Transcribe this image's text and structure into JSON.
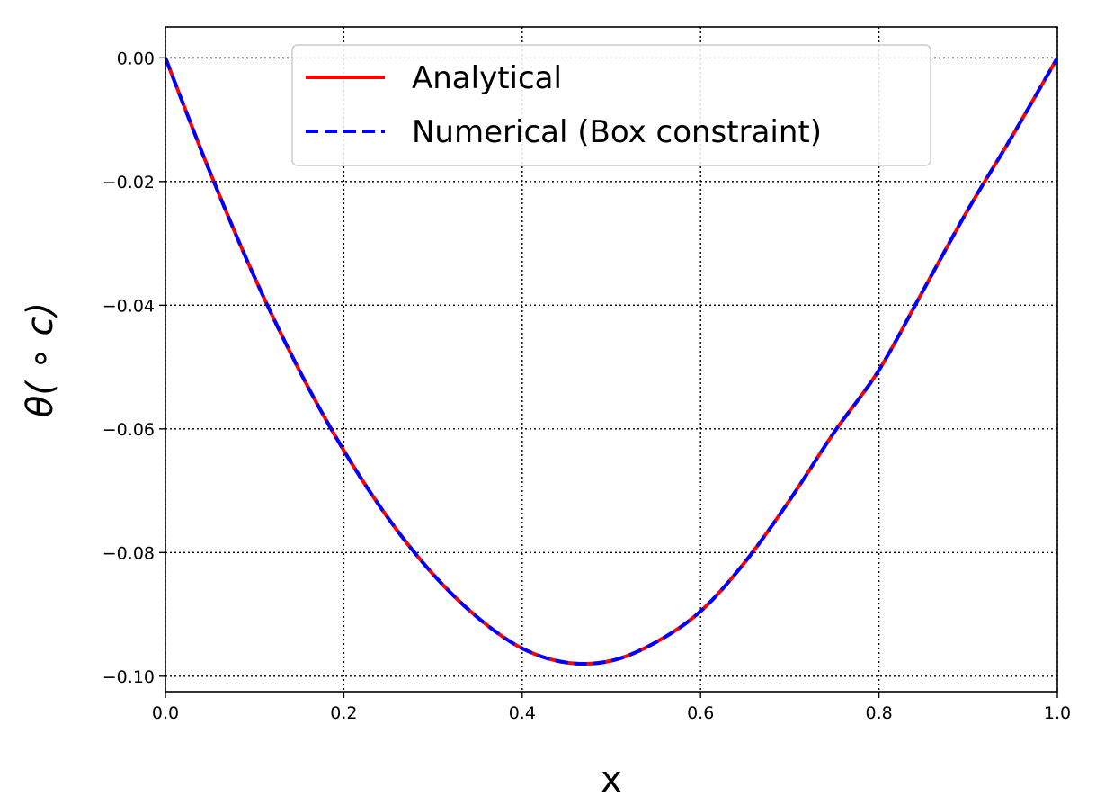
{
  "chart_data": {
    "type": "line",
    "title": "",
    "xlabel": "x",
    "ylabel": "θ( ∘ c)",
    "xlim": [
      0.0,
      1.0
    ],
    "ylim": [
      -0.1025,
      0.005
    ],
    "xticks": [
      0.0,
      0.2,
      0.4,
      0.6,
      0.8,
      1.0
    ],
    "xtick_labels": [
      "0.0",
      "0.2",
      "0.4",
      "0.6",
      "0.8",
      "1.0"
    ],
    "yticks": [
      0.0,
      -0.02,
      -0.04,
      -0.06,
      -0.08,
      -0.1
    ],
    "ytick_labels": [
      "0.00",
      "−0.02",
      "−0.04",
      "−0.06",
      "−0.08",
      "−0.10"
    ],
    "grid": true,
    "grid_style": "dotted",
    "legend_position": "top-center",
    "series": [
      {
        "name": "Analytical",
        "color": "#ff0000",
        "style": "solid",
        "x": [
          0.0,
          0.05,
          0.1,
          0.15,
          0.2,
          0.25,
          0.3,
          0.35,
          0.4,
          0.45,
          0.5,
          0.55,
          0.6,
          0.65,
          0.7,
          0.75,
          0.8,
          0.85,
          0.9,
          0.95,
          1.0
        ],
        "y": [
          0.0,
          -0.0185,
          -0.0355,
          -0.0505,
          -0.0635,
          -0.0745,
          -0.0835,
          -0.0905,
          -0.0955,
          -0.0978,
          -0.0975,
          -0.0945,
          -0.0895,
          -0.0815,
          -0.0715,
          -0.0605,
          -0.0505,
          -0.0375,
          -0.0245,
          -0.0125,
          0.0
        ]
      },
      {
        "name": "Numerical (Box constraint)",
        "color": "#0000ff",
        "style": "dashed",
        "x": [
          0.0,
          0.05,
          0.1,
          0.15,
          0.2,
          0.25,
          0.3,
          0.35,
          0.4,
          0.45,
          0.5,
          0.55,
          0.6,
          0.65,
          0.7,
          0.75,
          0.8,
          0.85,
          0.9,
          0.95,
          1.0
        ],
        "y": [
          0.0,
          -0.0185,
          -0.0355,
          -0.0505,
          -0.0635,
          -0.0745,
          -0.0835,
          -0.0905,
          -0.0955,
          -0.0978,
          -0.0975,
          -0.0945,
          -0.0895,
          -0.0815,
          -0.0715,
          -0.0605,
          -0.0505,
          -0.0375,
          -0.0245,
          -0.0125,
          0.0
        ]
      }
    ]
  }
}
